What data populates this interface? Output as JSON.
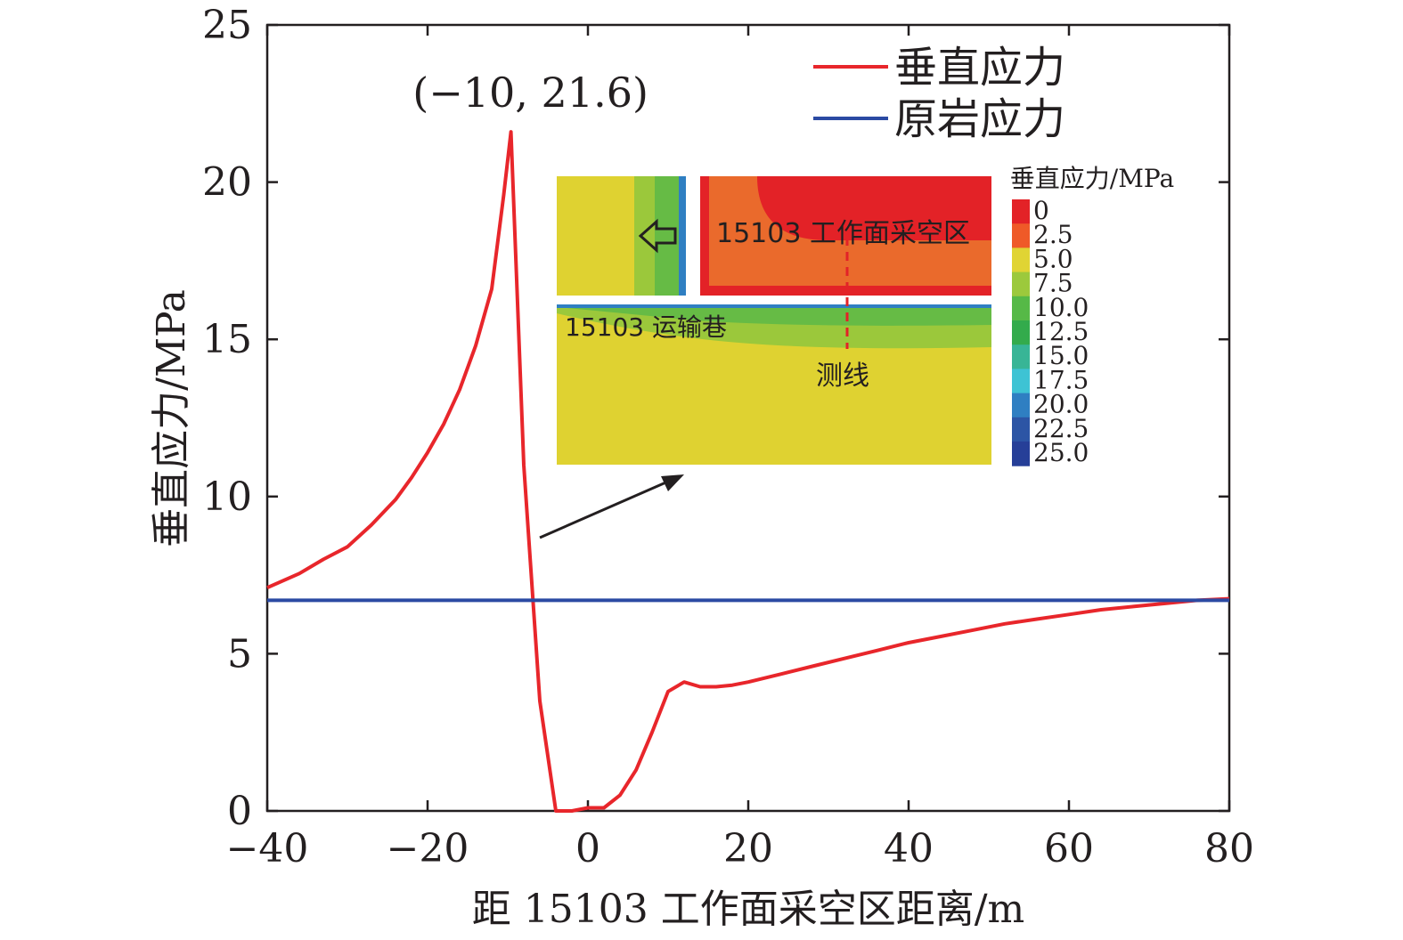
{
  "chart_data": {
    "type": "line",
    "xlabel": "距 15103 工作面采空区距离/m",
    "ylabel": "垂直应力/MPa",
    "xlim": [
      -40,
      80
    ],
    "ylim": [
      0,
      25
    ],
    "x_ticks": [
      "−40",
      "−20",
      "0",
      "20",
      "40",
      "60",
      "80"
    ],
    "y_ticks": [
      "0",
      "5",
      "10",
      "15",
      "20",
      "25"
    ],
    "x_tick_values": [
      -40,
      -20,
      0,
      20,
      40,
      60,
      80
    ],
    "y_tick_values": [
      0,
      5,
      10,
      15,
      20,
      25
    ],
    "grid": false,
    "legend_position": "top-right",
    "series": [
      {
        "name": "垂直应力",
        "color": "#e8262b",
        "x": [
          -40,
          -36,
          -33,
          -30,
          -27,
          -24,
          -22,
          -20,
          -18,
          -16,
          -14,
          -12,
          -10.5,
          -9.6,
          -8,
          -6,
          -4,
          -2,
          0,
          2,
          4,
          6,
          8,
          10,
          12,
          14,
          16,
          18,
          20,
          24,
          28,
          32,
          36,
          40,
          44,
          48,
          52,
          56,
          60,
          64,
          68,
          72,
          76,
          80
        ],
        "y": [
          7.1,
          7.55,
          8.0,
          8.4,
          9.1,
          9.9,
          10.6,
          11.4,
          12.3,
          13.4,
          14.8,
          16.6,
          19.6,
          21.6,
          11.0,
          3.5,
          0.0,
          0.0,
          0.1,
          0.1,
          0.5,
          1.3,
          2.5,
          3.8,
          4.1,
          3.95,
          3.95,
          4.0,
          4.1,
          4.35,
          4.6,
          4.85,
          5.1,
          5.35,
          5.55,
          5.75,
          5.95,
          6.1,
          6.25,
          6.4,
          6.5,
          6.6,
          6.7,
          6.75
        ]
      },
      {
        "name": "原岩应力",
        "color": "#2b4aa3",
        "x": [
          -40,
          80
        ],
        "y": [
          6.7,
          6.7
        ]
      }
    ],
    "annotations": [
      {
        "text": "(−10, 21.6)",
        "x": -9.6,
        "y": 21.6
      }
    ]
  },
  "inset": {
    "labels": {
      "goaf": "15103 工作面采空区",
      "roadway": "15103 运输巷",
      "line": "测线"
    },
    "colorbar": {
      "title": "垂直应力/MPa",
      "labels": [
        "0",
        "2.5",
        "5.0",
        "7.5",
        "10.0",
        "12.5",
        "15.0",
        "17.5",
        "20.0",
        "22.5",
        "25.0"
      ],
      "colors": [
        "#e32227",
        "#ef5a28",
        "#e0d434",
        "#9cc93c",
        "#56b947",
        "#33ab4c",
        "#38b596",
        "#3ec3d4",
        "#2f7fc2",
        "#2c55a5",
        "#263f98"
      ]
    },
    "colors": {
      "background": "#dfd231",
      "goaf_dark": "#e32227",
      "goaf_orange": "#ea6a2c",
      "green_light": "#9bc83b",
      "green": "#66bb45",
      "blue": "#2f7fc2"
    },
    "icons": [
      "arrow-left-icon"
    ]
  }
}
